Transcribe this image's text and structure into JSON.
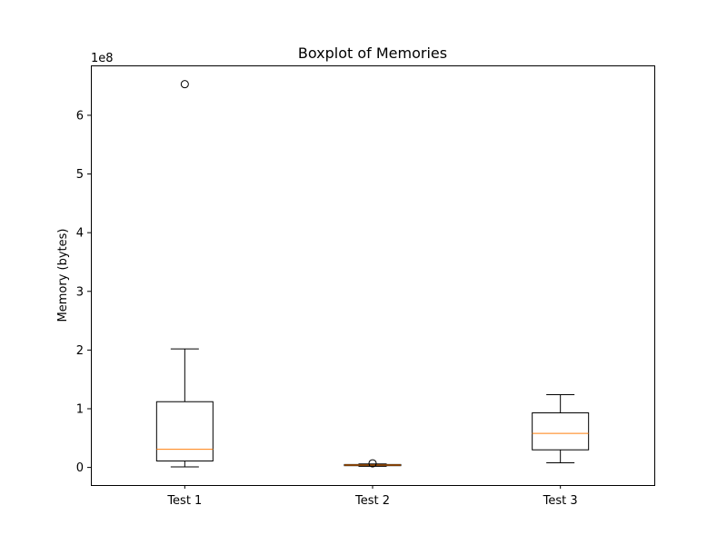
{
  "chart_data": {
    "type": "boxplot",
    "title": "Boxplot of Memories",
    "xlabel": "",
    "ylabel": "Memory (bytes)",
    "y_offset_label": "1e8",
    "y_scale": 100000000,
    "ylim": [
      -0.3,
      6.85
    ],
    "y_ticks": [
      0,
      1,
      2,
      3,
      4,
      5,
      6
    ],
    "y_tick_labels": [
      "0",
      "1",
      "2",
      "3",
      "4",
      "5",
      "6"
    ],
    "categories": [
      "Test 1",
      "Test 2",
      "Test 3"
    ],
    "boxes": [
      {
        "label": "Test 1",
        "whisker_low": 0.01,
        "q1": 0.11,
        "median": 0.31,
        "q3": 1.12,
        "whisker_high": 2.02,
        "outliers": [
          6.53
        ]
      },
      {
        "label": "Test 2",
        "whisker_low": 0.02,
        "q1": 0.03,
        "median": 0.04,
        "q3": 0.05,
        "whisker_high": 0.06,
        "outliers": [
          0.07
        ]
      },
      {
        "label": "Test 3",
        "whisker_low": 0.08,
        "q1": 0.3,
        "median": 0.58,
        "q3": 0.93,
        "whisker_high": 1.24,
        "outliers": []
      }
    ],
    "grid": false,
    "colors": {
      "box": "#000000",
      "median": "#ff7f0e",
      "outlier": "#000000"
    }
  }
}
